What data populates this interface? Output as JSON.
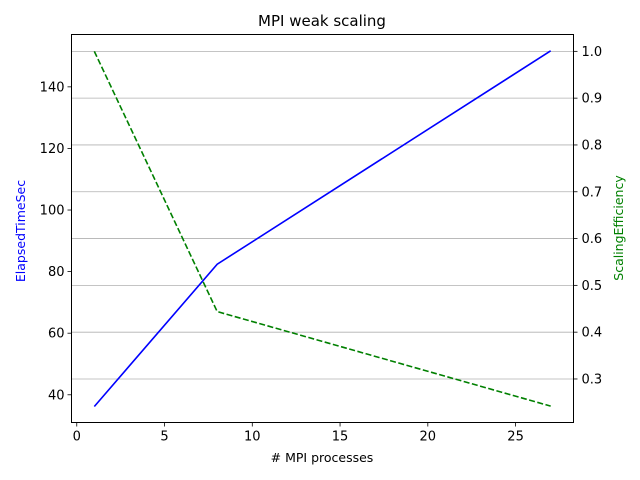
{
  "chart_data": {
    "type": "line",
    "title": "MPI weak scaling",
    "xlabel": "# MPI processes",
    "ylabel_left": "ElapsedTimeSec",
    "ylabel_right": "ScalingEfficiency",
    "xlim": [
      -0.3,
      28.3
    ],
    "ylim_left": [
      31,
      157
    ],
    "ylim_right": [
      0.207,
      1.036
    ],
    "x_ticks": [
      0,
      5,
      10,
      15,
      20,
      25
    ],
    "y_left_ticks": [
      40,
      60,
      80,
      100,
      120,
      140
    ],
    "y_right_ticks": [
      0.3,
      0.4,
      0.5,
      0.6,
      0.7,
      0.8,
      0.9,
      1.0
    ],
    "y_right_tick_labels": [
      "0.3",
      "0.4",
      "0.5",
      "0.6",
      "0.7",
      "0.8",
      "0.9",
      "1.0"
    ],
    "grid": "horizontal lines at right-axis ticks",
    "series": [
      {
        "name": "ElapsedTimeSec",
        "axis": "left",
        "color": "#0000ff",
        "style": "solid",
        "x": [
          1,
          8,
          27
        ],
        "y": [
          36.2,
          82.4,
          151.7
        ]
      },
      {
        "name": "ScalingEfficiency",
        "axis": "right",
        "color": "#008000",
        "style": "dashed",
        "x": [
          1,
          8,
          27
        ],
        "y": [
          1.0,
          0.444,
          0.242
        ]
      }
    ]
  }
}
